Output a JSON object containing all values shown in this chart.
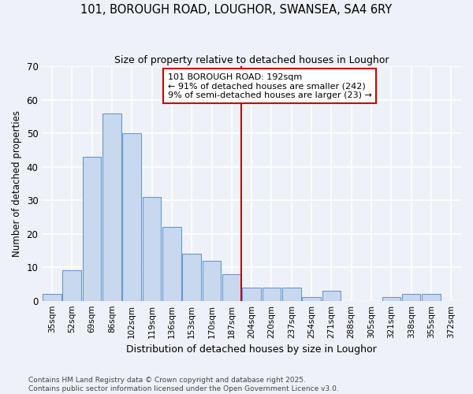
{
  "title_line1": "101, BOROUGH ROAD, LOUGHOR, SWANSEA, SA4 6RY",
  "title_line2": "Size of property relative to detached houses in Loughor",
  "xlabel": "Distribution of detached houses by size in Loughor",
  "ylabel": "Number of detached properties",
  "bar_labels": [
    "35sqm",
    "52sqm",
    "69sqm",
    "86sqm",
    "102sqm",
    "119sqm",
    "136sqm",
    "153sqm",
    "170sqm",
    "187sqm",
    "204sqm",
    "220sqm",
    "237sqm",
    "254sqm",
    "271sqm",
    "288sqm",
    "305sqm",
    "321sqm",
    "338sqm",
    "355sqm",
    "372sqm"
  ],
  "bar_values": [
    2,
    9,
    43,
    56,
    50,
    31,
    22,
    14,
    12,
    8,
    4,
    4,
    4,
    1,
    3,
    0,
    0,
    1,
    2,
    2,
    0
  ],
  "bar_color": "#c8d8ee",
  "bar_edge_color": "#6699cc",
  "ylim": [
    0,
    70
  ],
  "yticks": [
    0,
    10,
    20,
    30,
    40,
    50,
    60,
    70
  ],
  "vline_x": 9.5,
  "vline_color": "#cc0000",
  "annotation_text": "101 BOROUGH ROAD: 192sqm\n← 91% of detached houses are smaller (242)\n9% of semi-detached houses are larger (23) →",
  "footer_line1": "Contains HM Land Registry data © Crown copyright and database right 2025.",
  "footer_line2": "Contains public sector information licensed under the Open Government Licence v3.0.",
  "background_color": "#eef2f8",
  "grid_color": "#ffffff"
}
